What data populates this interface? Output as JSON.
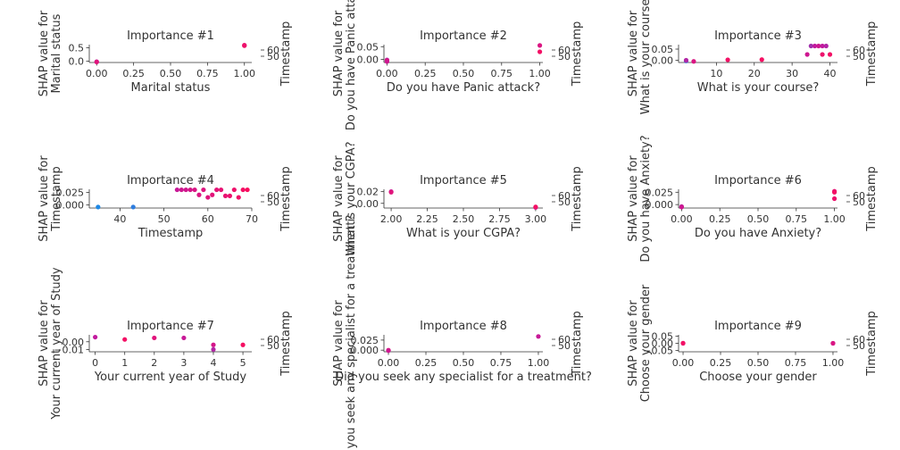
{
  "figure": {
    "colorbar_label": "Timestamp",
    "colorbar_ticks": [
      50,
      60
    ],
    "colors": {
      "low": "#1e88e5",
      "high": "#ff0d57",
      "mid": "#c21a9e"
    }
  },
  "chart_data": [
    {
      "type": "scatter",
      "title": "Importance #1",
      "xlabel": "Marital status",
      "ylabel": [
        "SHAP value for",
        "Marital status"
      ],
      "xlim": [
        -0.05,
        1.05
      ],
      "ylim": [
        -0.05,
        0.62
      ],
      "xticks": [
        0.0,
        0.25,
        0.5,
        0.75,
        1.0
      ],
      "xtick_labels": [
        "0.00",
        "0.25",
        "0.50",
        "0.75",
        "1.00"
      ],
      "yticks": [
        0.0,
        0.5
      ],
      "ytick_labels": [
        "0.0",
        "0.5"
      ],
      "points": [
        {
          "x": 0.0,
          "y": -0.02,
          "c": 0.45
        },
        {
          "x": 0.0,
          "y": -0.03,
          "c": 0.75
        },
        {
          "x": 1.0,
          "y": 0.58,
          "c": 0.9
        },
        {
          "x": 1.0,
          "y": 0.6,
          "c": 0.85
        }
      ]
    },
    {
      "type": "scatter",
      "title": "Importance #2",
      "xlabel": "Do you have Panic attack?",
      "ylabel": [
        "SHAP value for",
        "Do you have Panic attack?"
      ],
      "xlim": [
        -0.02,
        1.02
      ],
      "ylim": [
        -0.012,
        0.058
      ],
      "xticks": [
        0.0,
        0.25,
        0.5,
        0.75,
        1.0
      ],
      "xtick_labels": [
        "0.00",
        "0.25",
        "0.50",
        "0.75",
        "1.00"
      ],
      "yticks": [
        0.0,
        0.05
      ],
      "ytick_labels": [
        "0.00",
        "0.05"
      ],
      "points": [
        {
          "x": 0.0,
          "y": -0.002,
          "c": 0.45
        },
        {
          "x": 0.0,
          "y": -0.005,
          "c": 0.8
        },
        {
          "x": 0.0,
          "y": -0.008,
          "c": 0.6
        },
        {
          "x": 1.0,
          "y": 0.055,
          "c": 0.7
        },
        {
          "x": 1.0,
          "y": 0.03,
          "c": 0.9
        }
      ]
    },
    {
      "type": "scatter",
      "title": "Importance #3",
      "xlabel": "What is your course?",
      "ylabel": [
        "SHAP value for",
        "What is your course?"
      ],
      "xlim": [
        0,
        42
      ],
      "ylim": [
        -0.01,
        0.07
      ],
      "xticks": [
        10,
        20,
        30,
        40
      ],
      "xtick_labels": [
        "10",
        "20",
        "30",
        "40"
      ],
      "yticks": [
        0.0,
        0.05
      ],
      "ytick_labels": [
        "0.00",
        "0.05"
      ],
      "points": [
        {
          "x": 2,
          "y": -0.003,
          "c": 0.1
        },
        {
          "x": 2,
          "y": 0.0,
          "c": 0.45
        },
        {
          "x": 4,
          "y": -0.005,
          "c": 0.7
        },
        {
          "x": 13,
          "y": 0.002,
          "c": 0.9
        },
        {
          "x": 22,
          "y": 0.003,
          "c": 0.92
        },
        {
          "x": 34,
          "y": 0.026,
          "c": 0.6
        },
        {
          "x": 35,
          "y": 0.064,
          "c": 0.4
        },
        {
          "x": 36,
          "y": 0.064,
          "c": 0.5
        },
        {
          "x": 37,
          "y": 0.064,
          "c": 0.6
        },
        {
          "x": 38,
          "y": 0.064,
          "c": 0.5
        },
        {
          "x": 38,
          "y": 0.026,
          "c": 0.85
        },
        {
          "x": 39,
          "y": 0.064,
          "c": 0.45
        },
        {
          "x": 40,
          "y": 0.026,
          "c": 0.9
        }
      ]
    },
    {
      "type": "scatter",
      "title": "Importance #4",
      "xlabel": "Timestamp",
      "ylabel": [
        "SHAP value for",
        "Timestamp"
      ],
      "xlim": [
        33,
        70
      ],
      "ylim": [
        -0.006,
        0.031
      ],
      "xticks": [
        40,
        50,
        60,
        70
      ],
      "xtick_labels": [
        "40",
        "50",
        "60",
        "70"
      ],
      "yticks": [
        0.0,
        0.025
      ],
      "ytick_labels": [
        "0.000",
        "0.025"
      ],
      "points": [
        {
          "x": 35,
          "y": -0.004,
          "c": 0.0
        },
        {
          "x": 43,
          "y": -0.004,
          "c": 0.05
        },
        {
          "x": 53,
          "y": 0.03,
          "c": 0.55
        },
        {
          "x": 54,
          "y": 0.03,
          "c": 0.6
        },
        {
          "x": 55,
          "y": 0.03,
          "c": 0.62
        },
        {
          "x": 56,
          "y": 0.03,
          "c": 0.65
        },
        {
          "x": 57,
          "y": 0.03,
          "c": 0.68
        },
        {
          "x": 58,
          "y": 0.02,
          "c": 0.7
        },
        {
          "x": 59,
          "y": 0.03,
          "c": 0.72
        },
        {
          "x": 60,
          "y": 0.015,
          "c": 0.74
        },
        {
          "x": 61,
          "y": 0.02,
          "c": 0.76
        },
        {
          "x": 62,
          "y": 0.03,
          "c": 0.78
        },
        {
          "x": 63,
          "y": 0.03,
          "c": 0.8
        },
        {
          "x": 64,
          "y": 0.018,
          "c": 0.82
        },
        {
          "x": 65,
          "y": 0.018,
          "c": 0.84
        },
        {
          "x": 66,
          "y": 0.03,
          "c": 0.86
        },
        {
          "x": 67,
          "y": 0.015,
          "c": 0.88
        },
        {
          "x": 68,
          "y": 0.03,
          "c": 0.9
        },
        {
          "x": 69,
          "y": 0.03,
          "c": 0.95
        }
      ]
    },
    {
      "type": "scatter",
      "title": "Importance #5",
      "xlabel": "What is your CGPA?",
      "ylabel": [
        "SHAP value for",
        "What is your CGPA?"
      ],
      "xlim": [
        1.95,
        3.05
      ],
      "ylim": [
        -0.008,
        0.024
      ],
      "xticks": [
        2.0,
        2.25,
        2.5,
        2.75,
        3.0
      ],
      "xtick_labels": [
        "2.00",
        "2.25",
        "2.50",
        "2.75",
        "3.00"
      ],
      "yticks": [
        0.0,
        0.02
      ],
      "ytick_labels": [
        "0.00",
        "0.02"
      ],
      "points": [
        {
          "x": 2.0,
          "y": 0.02,
          "c": 0.55
        },
        {
          "x": 2.0,
          "y": 0.019,
          "c": 0.75
        },
        {
          "x": 3.0,
          "y": -0.007,
          "c": 0.6
        },
        {
          "x": 3.0,
          "y": -0.006,
          "c": 0.9
        }
      ]
    },
    {
      "type": "scatter",
      "title": "Importance #6",
      "xlabel": "Do you have Anxiety?",
      "ylabel": [
        "SHAP value for",
        "Do you have Anxiety?"
      ],
      "xlim": [
        -0.02,
        1.02
      ],
      "ylim": [
        -0.007,
        0.031
      ],
      "xticks": [
        0.0,
        0.25,
        0.5,
        0.75,
        1.0
      ],
      "xtick_labels": [
        "0.00",
        "0.25",
        "0.50",
        "0.75",
        "1.00"
      ],
      "yticks": [
        0.0,
        0.025
      ],
      "ytick_labels": [
        "0.000",
        "0.025"
      ],
      "points": [
        {
          "x": 0.0,
          "y": -0.004,
          "c": 0.45
        },
        {
          "x": 0.0,
          "y": -0.005,
          "c": 0.6
        },
        {
          "x": 1.0,
          "y": 0.027,
          "c": 0.8
        },
        {
          "x": 1.0,
          "y": 0.025,
          "c": 0.9
        },
        {
          "x": 1.0,
          "y": 0.012,
          "c": 0.85
        }
      ]
    },
    {
      "type": "scatter",
      "title": "Importance #7",
      "xlabel": "Your current year of Study",
      "ylabel": [
        "SHAP value for",
        "Your current year of Study"
      ],
      "xlim": [
        -0.2,
        5.3
      ],
      "ylim": [
        -0.013,
        0.009
      ],
      "xticks": [
        0,
        1,
        2,
        3,
        4,
        5
      ],
      "xtick_labels": [
        "0",
        "1",
        "2",
        "3",
        "4",
        "5"
      ],
      "yticks": [
        -0.01,
        0.0
      ],
      "ytick_labels": [
        "−0.01",
        "0.00"
      ],
      "points": [
        {
          "x": 0,
          "y": 0.006,
          "c": 0.5
        },
        {
          "x": 1,
          "y": 0.003,
          "c": 0.9
        },
        {
          "x": 2,
          "y": 0.005,
          "c": 0.75
        },
        {
          "x": 3,
          "y": 0.005,
          "c": 0.55
        },
        {
          "x": 4,
          "y": -0.004,
          "c": 0.65
        },
        {
          "x": 4,
          "y": -0.01,
          "c": 0.45
        },
        {
          "x": 5,
          "y": -0.004,
          "c": 0.92
        }
      ]
    },
    {
      "type": "scatter",
      "title": "Importance #8",
      "xlabel": "Did you seek any specialist for a treatment?",
      "ylabel": [
        "SHAP value for",
        "Did you seek any specialist for a treatment?"
      ],
      "xlim": [
        -0.03,
        1.03
      ],
      "ylim": [
        -0.004,
        0.038
      ],
      "xticks": [
        0.0,
        0.25,
        0.5,
        0.75,
        1.0
      ],
      "xtick_labels": [
        "0.00",
        "0.25",
        "0.50",
        "0.75",
        "1.00"
      ],
      "yticks": [
        0.0,
        0.025
      ],
      "ytick_labels": [
        "0.000",
        "0.025"
      ],
      "points": [
        {
          "x": 0.0,
          "y": 0.0,
          "c": 0.8
        },
        {
          "x": 0.0,
          "y": -0.001,
          "c": 0.6
        },
        {
          "x": 1.0,
          "y": 0.034,
          "c": 0.55
        }
      ]
    },
    {
      "type": "scatter",
      "title": "Importance #9",
      "xlabel": "Choose your gender",
      "ylabel": [
        "SHAP value for",
        "Choose your gender"
      ],
      "xlim": [
        -0.03,
        1.03
      ],
      "ylim": [
        -0.06,
        0.06
      ],
      "xticks": [
        0.0,
        0.25,
        0.5,
        0.75,
        1.0
      ],
      "xtick_labels": [
        "0.00",
        "0.25",
        "0.50",
        "0.75",
        "1.00"
      ],
      "yticks": [
        -0.05,
        0.0,
        0.05
      ],
      "ytick_labels": [
        "−0.05",
        "0.00",
        "0.05"
      ],
      "points": [
        {
          "x": 0.0,
          "y": 0.0,
          "c": 0.6
        },
        {
          "x": 0.0,
          "y": 0.001,
          "c": 0.9
        },
        {
          "x": 1.0,
          "y": 0.0,
          "c": 0.45
        },
        {
          "x": 1.0,
          "y": 0.0005,
          "c": 0.7
        }
      ]
    }
  ]
}
